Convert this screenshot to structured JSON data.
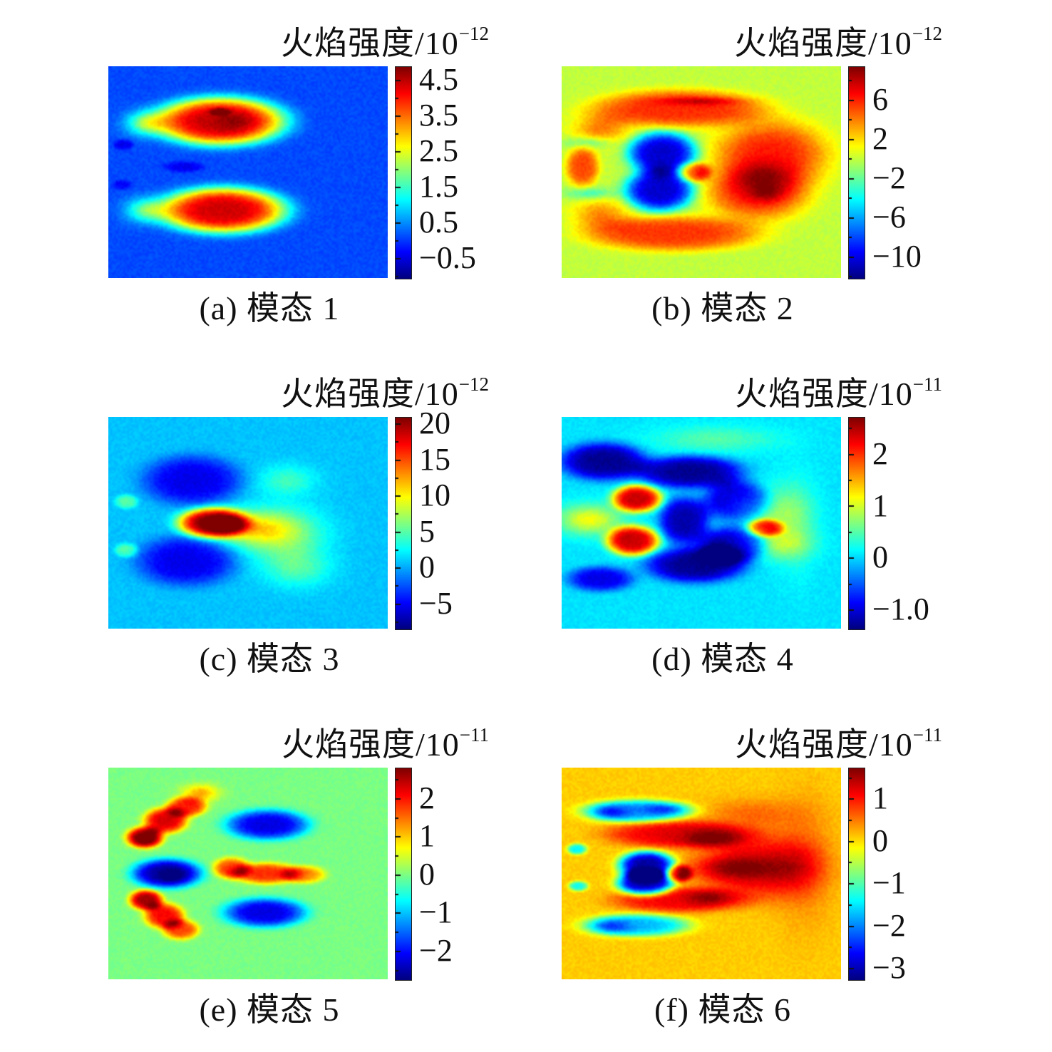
{
  "figure": {
    "kind": "six-panel POD mode heatmap figure",
    "background": "#ffffff",
    "text_color": "#111111"
  },
  "chart_data": {
    "type": "heatmap",
    "colormap": "jet",
    "grid": {
      "rows": 3,
      "cols": 2
    },
    "value_label": "火焰强度",
    "panels": [
      {
        "label": "a",
        "caption": "(a) 模态 1",
        "title_base": "火焰强度/10",
        "title_exp": "−12",
        "colorbar": {
          "vmin": -1.07,
          "vmax": 4.88,
          "ticks": [
            {
              "v": 4.5,
              "label": "4.5"
            },
            {
              "v": 3.5,
              "label": "3.5"
            },
            {
              "v": 2.5,
              "label": "2.5"
            },
            {
              "v": 1.5,
              "label": "1.5"
            },
            {
              "v": 0.5,
              "label": "0.5"
            },
            {
              "v": -0.5,
              "label": "−0.5"
            }
          ]
        },
        "field": {
          "bg": 0.1,
          "noise": 0.1,
          "blobs": [
            [
              0.4,
              0.26,
              0.195,
              0.095,
              4.35,
              2
            ],
            [
              0.41,
              0.68,
              0.19,
              0.09,
              4.3,
              2
            ],
            [
              0.13,
              0.27,
              0.05,
              0.04,
              1.6,
              1
            ],
            [
              0.13,
              0.68,
              0.05,
              0.04,
              1.5,
              1
            ],
            [
              0.055,
              0.37,
              0.03,
              0.02,
              -0.55,
              2
            ],
            [
              0.27,
              0.475,
              0.06,
              0.022,
              -0.5,
              2
            ],
            [
              0.05,
              0.56,
              0.03,
              0.02,
              -0.45,
              2
            ],
            [
              0.4,
              0.215,
              0.03,
              0.015,
              0.9,
              2
            ],
            [
              0.45,
              0.26,
              0.05,
              0.03,
              0.35,
              1
            ]
          ]
        }
      },
      {
        "label": "b",
        "caption": "(b) 模态 2",
        "title_base": "火焰强度/10",
        "title_exp": "−12",
        "colorbar": {
          "vmin": -12.2,
          "vmax": 9.4,
          "ticks": [
            {
              "v": 6,
              "label": "6"
            },
            {
              "v": 2,
              "label": "2"
            },
            {
              "v": -2,
              "label": "−2"
            },
            {
              "v": -6,
              "label": "−6"
            },
            {
              "v": -10,
              "label": "−10"
            }
          ]
        },
        "field": {
          "bg": 0.0,
          "noise": 0.35,
          "blobs": [
            [
              0.42,
              0.2,
              0.26,
              0.075,
              5.8,
              2
            ],
            [
              0.75,
              0.42,
              0.16,
              0.13,
              6.2,
              1.5
            ],
            [
              0.7,
              0.6,
              0.14,
              0.1,
              6.0,
              1.5
            ],
            [
              0.4,
              0.79,
              0.26,
              0.07,
              5.6,
              2
            ],
            [
              0.14,
              0.3,
              0.07,
              0.05,
              4.0,
              1
            ],
            [
              0.14,
              0.7,
              0.07,
              0.05,
              3.8,
              1
            ],
            [
              0.36,
              0.41,
              0.105,
              0.085,
              -10.5,
              2
            ],
            [
              0.35,
              0.585,
              0.105,
              0.085,
              -10.5,
              2
            ],
            [
              0.475,
              0.5,
              0.05,
              0.04,
              6,
              2
            ],
            [
              0.075,
              0.475,
              0.05,
              0.08,
              5.2,
              2
            ],
            [
              0.1,
              0.36,
              0.06,
              0.02,
              -3,
              1
            ],
            [
              0.1,
              0.6,
              0.06,
              0.02,
              -3,
              1
            ],
            [
              0.5,
              0.165,
              0.1,
              0.013,
              2.5,
              1
            ],
            [
              0.73,
              0.6,
              0.04,
              0.025,
              2.0,
              1
            ]
          ]
        }
      },
      {
        "label": "c",
        "caption": "(c) 模态 3",
        "title_base": "火焰强度/10",
        "title_exp": "−12",
        "colorbar": {
          "vmin": -8.5,
          "vmax": 20.9,
          "ticks": [
            {
              "v": 20,
              "label": "20"
            },
            {
              "v": 15,
              "label": "15"
            },
            {
              "v": 10,
              "label": "10"
            },
            {
              "v": 5,
              "label": "5"
            },
            {
              "v": 0,
              "label": "0"
            },
            {
              "v": -5,
              "label": "−5"
            }
          ]
        },
        "field": {
          "bg": 0.8,
          "noise": 0.45,
          "blobs": [
            [
              0.3,
              0.3,
              0.15,
              0.1,
              -6.2,
              2
            ],
            [
              0.28,
              0.68,
              0.15,
              0.1,
              -6.2,
              2
            ],
            [
              0.375,
              0.5,
              0.105,
              0.06,
              18.5,
              2
            ],
            [
              0.5,
              0.525,
              0.1,
              0.055,
              8,
              1
            ],
            [
              0.63,
              0.56,
              0.1,
              0.09,
              5.5,
              1
            ],
            [
              0.64,
              0.3,
              0.07,
              0.05,
              3.5,
              1
            ],
            [
              0.68,
              0.72,
              0.08,
              0.06,
              3.5,
              1
            ],
            [
              0.065,
              0.4,
              0.035,
              0.028,
              4.2,
              2
            ],
            [
              0.065,
              0.63,
              0.035,
              0.028,
              4.2,
              2
            ],
            [
              0.4,
              0.5,
              0.05,
              0.025,
              4,
              2
            ]
          ]
        }
      },
      {
        "label": "d",
        "caption": "(d) 模态 4",
        "title_base": "火焰强度/10",
        "title_exp": "−11",
        "colorbar": {
          "vmin": -1.37,
          "vmax": 2.71,
          "ticks": [
            {
              "v": 2,
              "label": "2"
            },
            {
              "v": 1,
              "label": "1"
            },
            {
              "v": 0,
              "label": "0"
            },
            {
              "v": -1.0,
              "label": "−1.0"
            }
          ]
        },
        "field": {
          "bg": 0.05,
          "noise": 0.06,
          "blobs": [
            [
              0.27,
              0.385,
              0.075,
              0.055,
              2.35,
              2
            ],
            [
              0.255,
              0.585,
              0.08,
              0.06,
              2.35,
              2
            ],
            [
              0.1,
              0.485,
              0.08,
              0.05,
              1.1,
              1
            ],
            [
              0.15,
              0.21,
              0.13,
              0.075,
              -1.35,
              2
            ],
            [
              0.46,
              0.26,
              0.16,
              0.065,
              -1.35,
              2
            ],
            [
              0.44,
              0.49,
              0.075,
              0.095,
              -1.25,
              2
            ],
            [
              0.48,
              0.7,
              0.15,
              0.07,
              -1.35,
              2
            ],
            [
              0.625,
              0.4,
              0.1,
              0.085,
              -1.3,
              2
            ],
            [
              0.615,
              0.6,
              0.1,
              0.075,
              -1.3,
              2
            ],
            [
              0.14,
              0.765,
              0.1,
              0.05,
              -1.0,
              2
            ],
            [
              0.73,
              0.525,
              0.055,
              0.035,
              1.45,
              2
            ],
            [
              0.71,
              0.45,
              0.1,
              0.08,
              0.75,
              1
            ],
            [
              0.76,
              0.6,
              0.09,
              0.05,
              0.7,
              1
            ],
            [
              0.84,
              0.5,
              0.05,
              0.16,
              0.35,
              1
            ],
            [
              0.55,
              0.105,
              0.16,
              0.045,
              0.45,
              1
            ],
            [
              0.56,
              0.63,
              0.07,
              0.04,
              -0.25,
              1
            ]
          ]
        }
      },
      {
        "label": "e",
        "caption": "(e) 模态 5",
        "title_base": "火焰强度/10",
        "title_exp": "−11",
        "colorbar": {
          "vmin": -2.75,
          "vmax": 2.8,
          "ticks": [
            {
              "v": 2,
              "label": "2"
            },
            {
              "v": 1,
              "label": "1"
            },
            {
              "v": 0,
              "label": "0"
            },
            {
              "v": -1,
              "label": "−1"
            },
            {
              "v": -2,
              "label": "−2"
            }
          ]
        },
        "field": {
          "bg": 0.0,
          "noise": 0.08,
          "blobs": [
            [
              0.13,
              0.33,
              0.055,
              0.042,
              2.7,
              2
            ],
            [
              0.205,
              0.25,
              0.065,
              0.05,
              2.3,
              2
            ],
            [
              0.28,
              0.185,
              0.06,
              0.04,
              1.9,
              2
            ],
            [
              0.33,
              0.12,
              0.045,
              0.028,
              1.2,
              1
            ],
            [
              0.21,
              0.5,
              0.105,
              0.058,
              -2.6,
              2
            ],
            [
              0.135,
              0.625,
              0.05,
              0.04,
              2.6,
              2
            ],
            [
              0.2,
              0.7,
              0.06,
              0.05,
              2.1,
              2
            ],
            [
              0.26,
              0.765,
              0.055,
              0.04,
              1.7,
              2
            ],
            [
              0.57,
              0.27,
              0.125,
              0.06,
              -2.2,
              2
            ],
            [
              0.56,
              0.685,
              0.125,
              0.058,
              -2.2,
              2
            ],
            [
              0.44,
              0.475,
              0.055,
              0.042,
              1.7,
              2
            ],
            [
              0.565,
              0.5,
              0.1,
              0.042,
              1.85,
              2
            ],
            [
              0.7,
              0.505,
              0.065,
              0.035,
              1.3,
              2
            ],
            [
              0.23,
              0.51,
              0.025,
              0.018,
              -0.6,
              1
            ],
            [
              0.135,
              0.34,
              0.03,
              0.02,
              0.5,
              1
            ]
          ]
        }
      },
      {
        "label": "f",
        "caption": "(f) 模态 6",
        "title_base": "火焰强度/10",
        "title_exp": "−11",
        "colorbar": {
          "vmin": -3.27,
          "vmax": 1.73,
          "ticks": [
            {
              "v": 1,
              "label": "1"
            },
            {
              "v": 0,
              "label": "0"
            },
            {
              "v": -1,
              "label": "−1"
            },
            {
              "v": -2,
              "label": "−2"
            },
            {
              "v": -3,
              "label": "−3"
            }
          ]
        },
        "field": {
          "bg": 0.1,
          "noise": 0.08,
          "blobs": [
            [
              0.305,
              0.46,
              0.085,
              0.055,
              -3.2,
              2
            ],
            [
              0.3,
              0.545,
              0.085,
              0.05,
              -3.2,
              2
            ],
            [
              0.42,
              0.5,
              0.04,
              0.035,
              1.5,
              2
            ],
            [
              0.27,
              0.205,
              0.16,
              0.045,
              -1.9,
              2
            ],
            [
              0.17,
              0.21,
              0.05,
              0.025,
              -0.9,
              1
            ],
            [
              0.38,
              0.195,
              0.06,
              0.02,
              -0.8,
              1
            ],
            [
              0.27,
              0.745,
              0.16,
              0.045,
              -1.8,
              2
            ],
            [
              0.17,
              0.75,
              0.05,
              0.025,
              -0.8,
              1
            ],
            [
              0.055,
              0.385,
              0.03,
              0.022,
              -1.5,
              2
            ],
            [
              0.06,
              0.56,
              0.03,
              0.02,
              -1.4,
              2
            ],
            [
              0.42,
              0.315,
              0.22,
              0.055,
              1.1,
              2
            ],
            [
              0.42,
              0.625,
              0.2,
              0.05,
              1.05,
              2
            ],
            [
              0.7,
              0.47,
              0.17,
              0.12,
              1.15,
              1.5
            ],
            [
              0.53,
              0.335,
              0.07,
              0.03,
              0.55,
              1
            ],
            [
              0.62,
              0.475,
              0.12,
              0.035,
              0.6,
              1
            ],
            [
              0.52,
              0.615,
              0.05,
              0.025,
              0.45,
              1
            ],
            [
              0.87,
              0.45,
              0.07,
              0.2,
              0.45,
              1
            ],
            [
              0.68,
              0.22,
              0.12,
              0.05,
              0.5,
              1
            ]
          ]
        }
      }
    ]
  }
}
